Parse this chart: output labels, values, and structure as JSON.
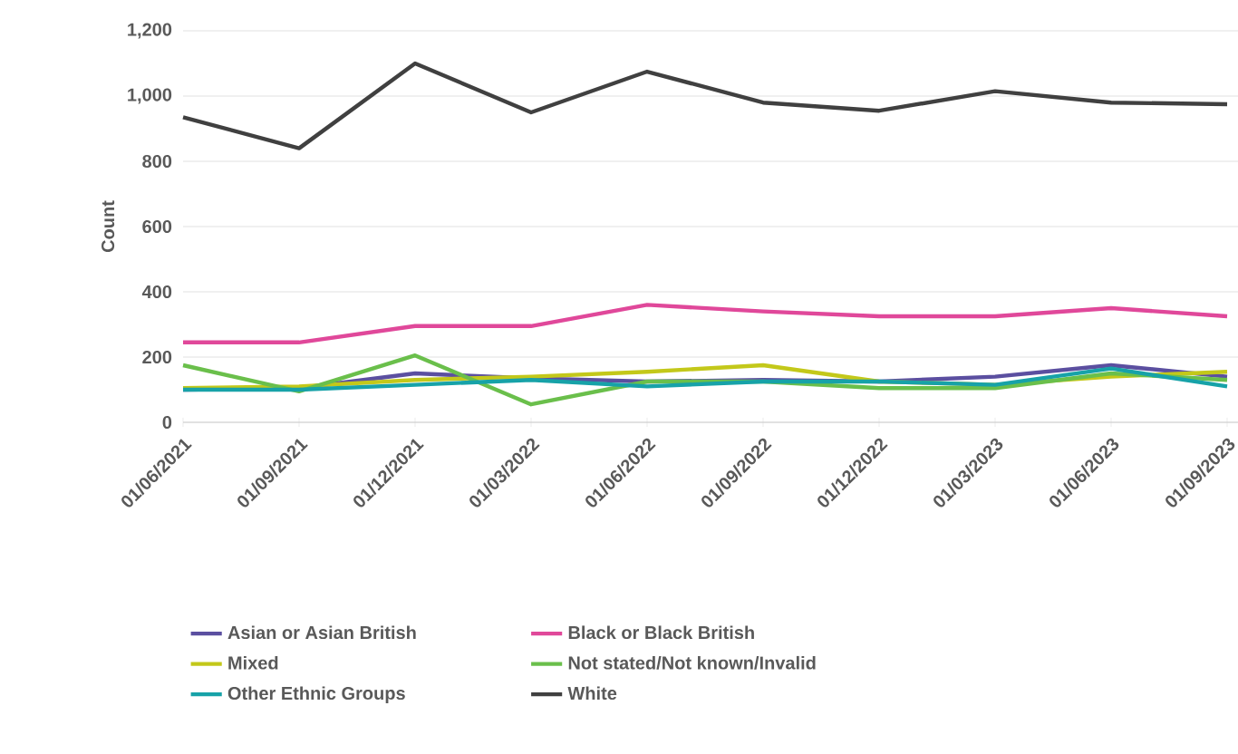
{
  "chart_data": {
    "type": "line",
    "ylabel": "Count",
    "categories": [
      "01/06/2021",
      "01/09/2021",
      "01/12/2021",
      "01/03/2022",
      "01/06/2022",
      "01/09/2022",
      "01/12/2022",
      "01/03/2023",
      "01/06/2023",
      "01/09/2023"
    ],
    "series": [
      {
        "name": "Asian or Asian British",
        "color": "#5b4fa0",
        "values": [
          100,
          105,
          150,
          135,
          125,
          130,
          125,
          140,
          175,
          140
        ]
      },
      {
        "name": "Black or Black British",
        "color": "#e0489a",
        "values": [
          245,
          245,
          295,
          295,
          360,
          340,
          325,
          325,
          350,
          325
        ]
      },
      {
        "name": "Mixed",
        "color": "#c3c81a",
        "values": [
          105,
          110,
          130,
          140,
          155,
          175,
          125,
          115,
          140,
          155
        ]
      },
      {
        "name": "Not stated/Not known/Invalid",
        "color": "#6abf4b",
        "values": [
          175,
          95,
          205,
          55,
          125,
          125,
          105,
          105,
          150,
          130
        ]
      },
      {
        "name": "Other Ethnic Groups",
        "color": "#17a2a8",
        "values": [
          100,
          100,
          115,
          130,
          110,
          125,
          125,
          115,
          165,
          110
        ]
      },
      {
        "name": "White",
        "color": "#404040",
        "values": [
          935,
          840,
          1100,
          950,
          1075,
          980,
          955,
          1015,
          980,
          975
        ]
      }
    ],
    "ylim": [
      0,
      1200
    ],
    "yticks": [
      {
        "value": 0,
        "label": "0"
      },
      {
        "value": 200,
        "label": "200"
      },
      {
        "value": 400,
        "label": "400"
      },
      {
        "value": 600,
        "label": "600"
      },
      {
        "value": 800,
        "label": "800"
      },
      {
        "value": 1000,
        "label": "1,000"
      },
      {
        "value": 1200,
        "label": "1,200"
      }
    ],
    "grid": "y",
    "legend": "bottom",
    "marker": "none",
    "line_style": "solid"
  }
}
